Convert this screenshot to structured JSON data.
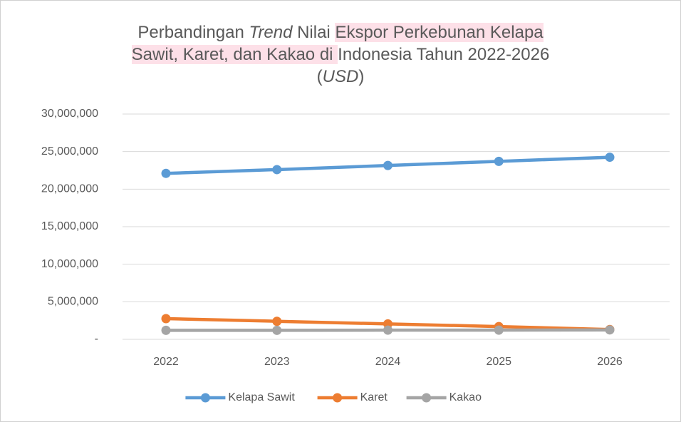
{
  "chart_data": {
    "type": "line",
    "title": [
      "Perbandingan ",
      "Trend",
      " Nilai ",
      "Ekspor Perkebunan Kelapa",
      "Sawit, Karet, dan Kakao di ",
      "Indonesia Tahun 2022-2026",
      "(",
      "USD",
      ")"
    ],
    "categories": [
      "2022",
      "2023",
      "2024",
      "2025",
      "2026"
    ],
    "series": [
      {
        "name": "Kelapa Sawit",
        "color": "#5b9bd5",
        "values": [
          22100000,
          22600000,
          23150000,
          23700000,
          24250000
        ]
      },
      {
        "name": "Karet",
        "color": "#ed7d31",
        "values": [
          2750000,
          2400000,
          2050000,
          1700000,
          1300000
        ]
      },
      {
        "name": "Kakao",
        "color": "#a5a5a5",
        "values": [
          1200000,
          1200000,
          1220000,
          1220000,
          1250000
        ]
      }
    ],
    "ylim": [
      0,
      30000000
    ],
    "yticks": [
      {
        "value": 0,
        "label": "-"
      },
      {
        "value": 5000000,
        "label": "5,000,000"
      },
      {
        "value": 10000000,
        "label": "10,000,000"
      },
      {
        "value": 15000000,
        "label": "15,000,000"
      },
      {
        "value": 20000000,
        "label": "20,000,000"
      },
      {
        "value": 25000000,
        "label": "25,000,000"
      },
      {
        "value": 30000000,
        "label": "30,000,000"
      }
    ],
    "grid": true,
    "legend": "bottom"
  }
}
